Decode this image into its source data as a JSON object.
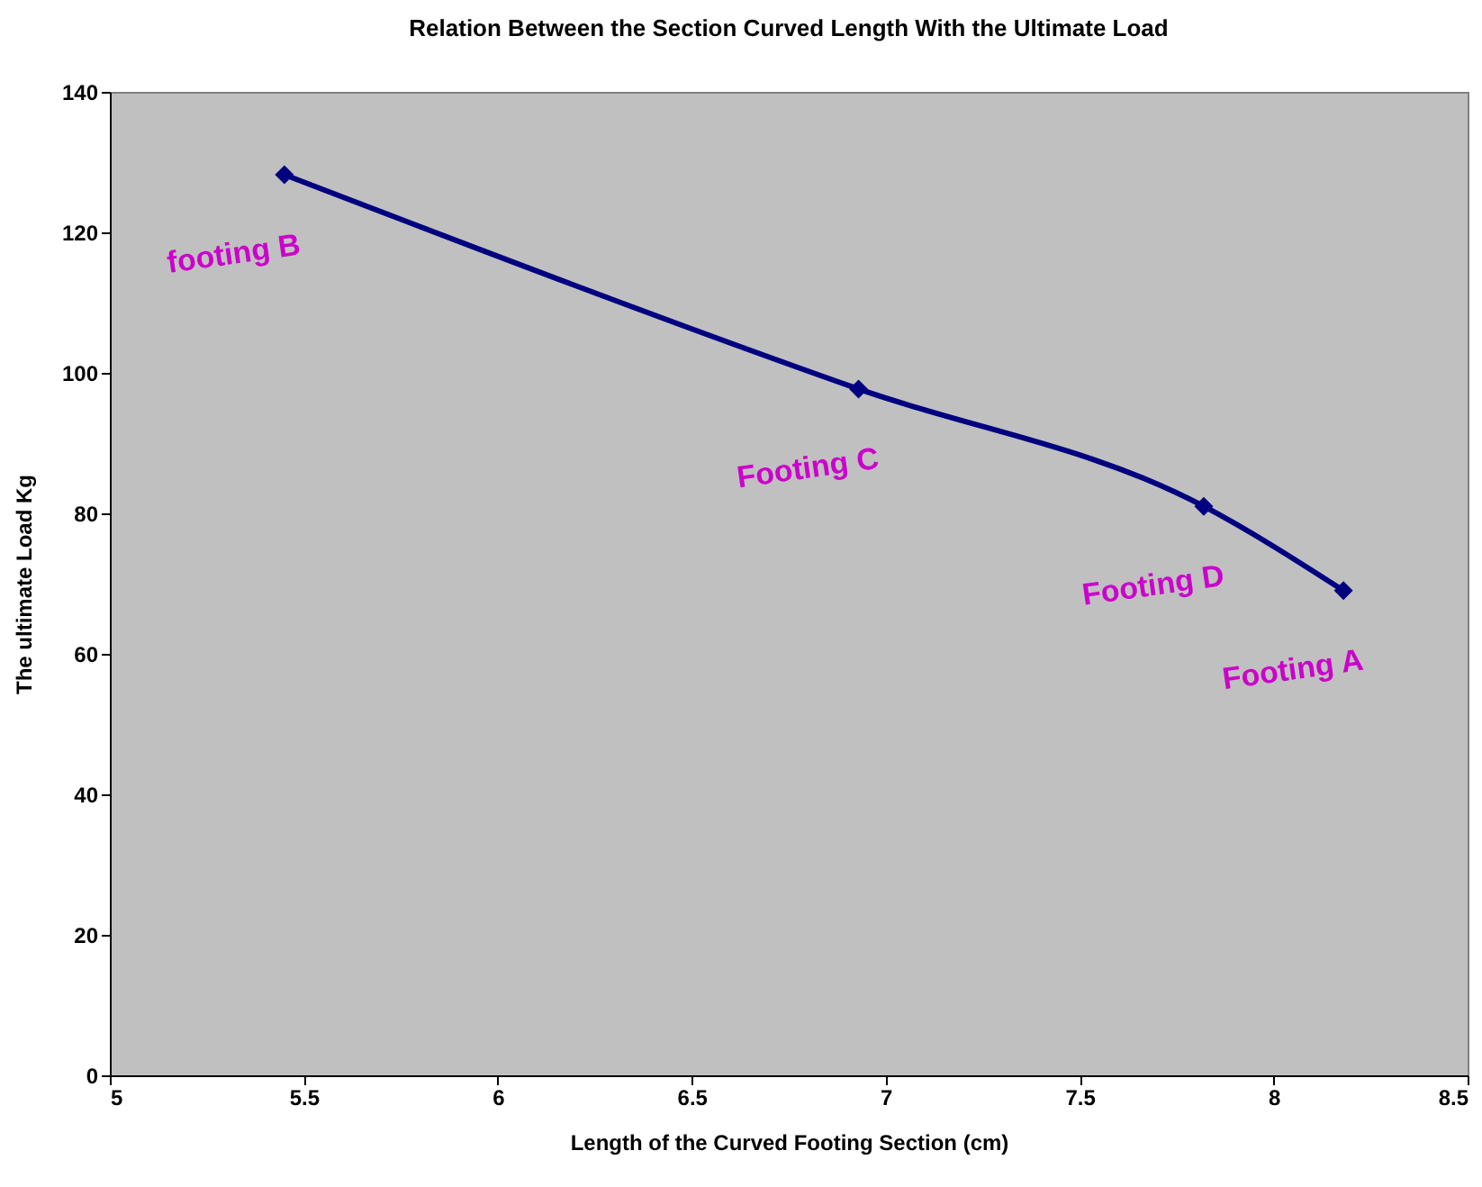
{
  "chart_data": {
    "type": "line",
    "title": "Relation Between the Section Curved Length With the Ultimate Load",
    "xlabel": "Length of the Curved Footing Section (cm)",
    "ylabel": "The ultimate Load Kg",
    "x": [
      5.45,
      6.93,
      7.82,
      8.18
    ],
    "series": [
      {
        "color": "#000080",
        "values": [
          128.2,
          97.7,
          81,
          69
        ]
      }
    ],
    "xlim": [
      5,
      8.5
    ],
    "xticks": [
      5,
      5.5,
      6,
      6.5,
      7,
      7.5,
      8,
      8.5
    ],
    "ylim": [
      0,
      140
    ],
    "yticks": [
      0,
      20,
      40,
      60,
      80,
      100,
      120,
      140
    ],
    "grid": false,
    "marker": "diamond",
    "line_style": "solid",
    "annotations": [
      {
        "text": "footing B",
        "x": 5.45,
        "y": 128.2
      },
      {
        "text": "Footing C",
        "x": 6.93,
        "y": 97.7
      },
      {
        "text": "Footing D",
        "x": 7.82,
        "y": 81
      },
      {
        "text": "Footing A",
        "x": 8.18,
        "y": 69
      }
    ]
  }
}
